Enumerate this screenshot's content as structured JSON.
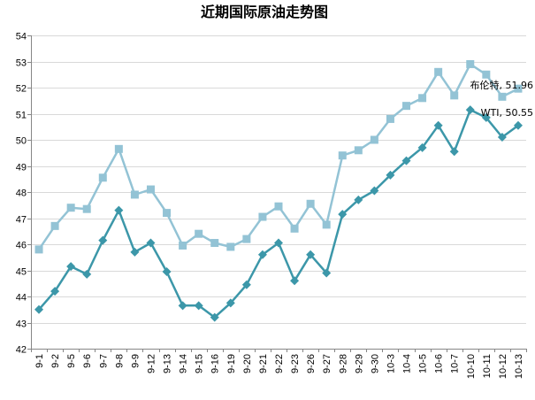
{
  "chart_data": {
    "type": "line",
    "title": "近期国际原油走势图",
    "xlabel": "",
    "ylabel": "",
    "ylim": [
      42,
      54
    ],
    "yticks": [
      42,
      43,
      44,
      45,
      46,
      47,
      48,
      49,
      50,
      51,
      52,
      53,
      54
    ],
    "grid": true,
    "legend": "none",
    "categories": [
      "9-1",
      "9-2",
      "9-5",
      "9-6",
      "9-7",
      "9-8",
      "9-9",
      "9-12",
      "9-13",
      "9-14",
      "9-15",
      "9-16",
      "9-19",
      "9-20",
      "9-21",
      "9-22",
      "9-23",
      "9-26",
      "9-27",
      "9-28",
      "9-29",
      "9-30",
      "10-3",
      "10-4",
      "10-5",
      "10-6",
      "10-7",
      "10-10",
      "10-11",
      "10-12",
      "10-13"
    ],
    "series": [
      {
        "key": "brent",
        "color": "#93C3D5",
        "marker": "square",
        "values": [
          45.8,
          46.7,
          47.4,
          47.35,
          48.55,
          49.65,
          47.9,
          48.1,
          47.2,
          45.95,
          46.4,
          46.05,
          45.9,
          46.2,
          47.05,
          47.45,
          46.6,
          47.55,
          46.75,
          49.4,
          49.6,
          50.0,
          50.8,
          51.3,
          51.6,
          52.6,
          51.7,
          52.9,
          52.5,
          51.65,
          51.96
        ]
      },
      {
        "key": "wti",
        "color": "#3C97A9",
        "marker": "diamond",
        "values": [
          43.5,
          44.2,
          45.15,
          44.85,
          46.15,
          47.3,
          45.7,
          46.05,
          44.95,
          43.65,
          43.65,
          43.2,
          43.75,
          44.45,
          45.6,
          46.05,
          44.6,
          45.6,
          44.9,
          47.15,
          47.7,
          48.05,
          48.65,
          49.2,
          49.7,
          50.55,
          49.55,
          51.15,
          50.85,
          50.1,
          50.55
        ]
      }
    ],
    "annotations": [
      {
        "series": "brent",
        "text": "布伦特, 51.96"
      },
      {
        "series": "wti",
        "text": "WTI, 50.55"
      }
    ]
  }
}
